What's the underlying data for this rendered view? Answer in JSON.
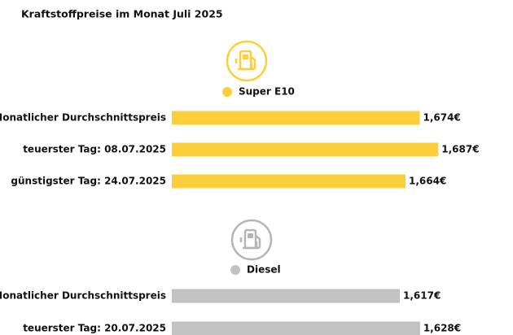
{
  "title": "Kraftstoffpreise im Monat Juli 2025",
  "chart_data": [
    {
      "type": "bar",
      "orientation": "horizontal",
      "title": "Super E10",
      "color": "#fccf3a",
      "categories": [
        "Monatlicher Durchschnittspreis",
        "teuerster Tag: 08.07.2025",
        "günstigster Tag: 24.07.2025"
      ],
      "values": [
        1.674,
        1.687,
        1.664
      ],
      "value_labels": [
        "1,674€",
        "1,687€",
        "1,664€"
      ],
      "xlim": [
        1.5,
        1.7
      ]
    },
    {
      "type": "bar",
      "orientation": "horizontal",
      "title": "Diesel",
      "color": "#c2c2c2",
      "categories": [
        "Monatlicher Durchschnittspreis",
        "teuerster Tag: 20.07.2025"
      ],
      "values": [
        1.617,
        1.628
      ],
      "value_labels": [
        "1,617€",
        "1,628€"
      ],
      "xlim": [
        1.493,
        1.648
      ]
    }
  ]
}
